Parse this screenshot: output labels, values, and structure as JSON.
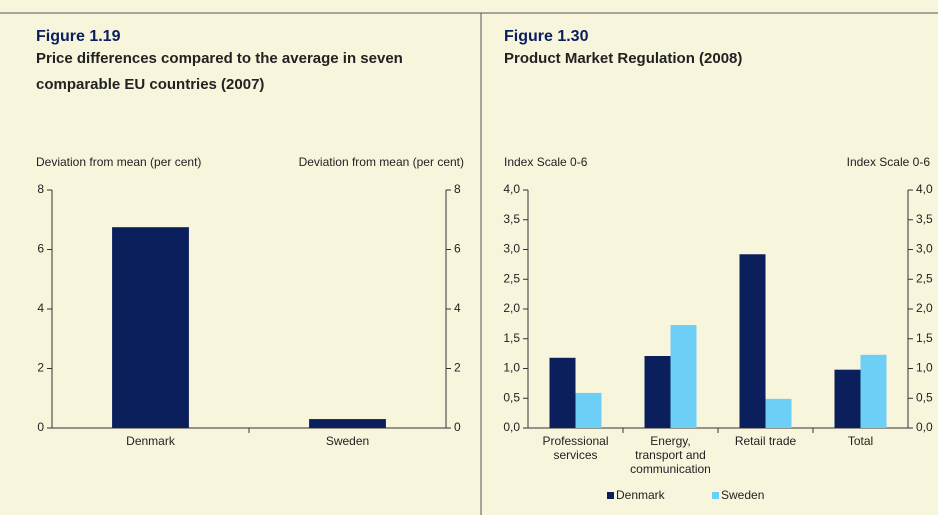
{
  "chart_data": [
    {
      "type": "bar",
      "title": "Figure 1.19",
      "subtitle": "Price differences compared to the average in seven comparable EU countries (2007)",
      "y_label": "Deviation from mean (per cent)",
      "y2_label": "Deviation from mean (per cent)",
      "categories": [
        "Denmark",
        "Sweden"
      ],
      "values": [
        6.75,
        0.3
      ],
      "color": "#0a1f5c",
      "ylim": [
        0,
        8
      ],
      "yticks": [
        0,
        2,
        4,
        6,
        8
      ],
      "y2lim": [
        0,
        8
      ],
      "y2ticks": [
        0,
        2,
        4,
        6,
        8
      ]
    },
    {
      "type": "bar",
      "title": "Figure 1.30",
      "subtitle": "Product Market Regulation (2008)",
      "y_label": "Index Scale 0-6",
      "y2_label": "Index Scale 0-6",
      "categories": [
        "Professional services",
        "Energy, transport and communication",
        "Retail trade",
        "Total"
      ],
      "series": [
        {
          "name": "Denmark",
          "color": "#0a1f5c",
          "values": [
            1.18,
            1.21,
            2.92,
            0.98
          ]
        },
        {
          "name": "Sweden",
          "color": "#6dcff6",
          "values": [
            0.59,
            1.73,
            0.49,
            1.23
          ]
        }
      ],
      "ylim": [
        0,
        4
      ],
      "yticks": [
        {
          "value": 0,
          "label": "0,0"
        },
        {
          "value": 0.5,
          "label": "0,5"
        },
        {
          "value": 1,
          "label": "1,0"
        },
        {
          "value": 1.5,
          "label": "1,5"
        },
        {
          "value": 2,
          "label": "2,0"
        },
        {
          "value": 2.5,
          "label": "2,5"
        },
        {
          "value": 3,
          "label": "3,0"
        },
        {
          "value": 3.5,
          "label": "3,5"
        },
        {
          "value": 4,
          "label": "4,0"
        }
      ],
      "y2lim": [
        0,
        4
      ],
      "y2ticks": [
        {
          "value": 0,
          "label": "0,0"
        },
        {
          "value": 0.5,
          "label": "0,5"
        },
        {
          "value": 1,
          "label": "1,0"
        },
        {
          "value": 1.5,
          "label": "1,5"
        },
        {
          "value": 2,
          "label": "2,0"
        },
        {
          "value": 2.5,
          "label": "2,5"
        },
        {
          "value": 3,
          "label": "3,0"
        },
        {
          "value": 3.5,
          "label": "3,5"
        },
        {
          "value": 4,
          "label": "4,0"
        }
      ]
    }
  ]
}
